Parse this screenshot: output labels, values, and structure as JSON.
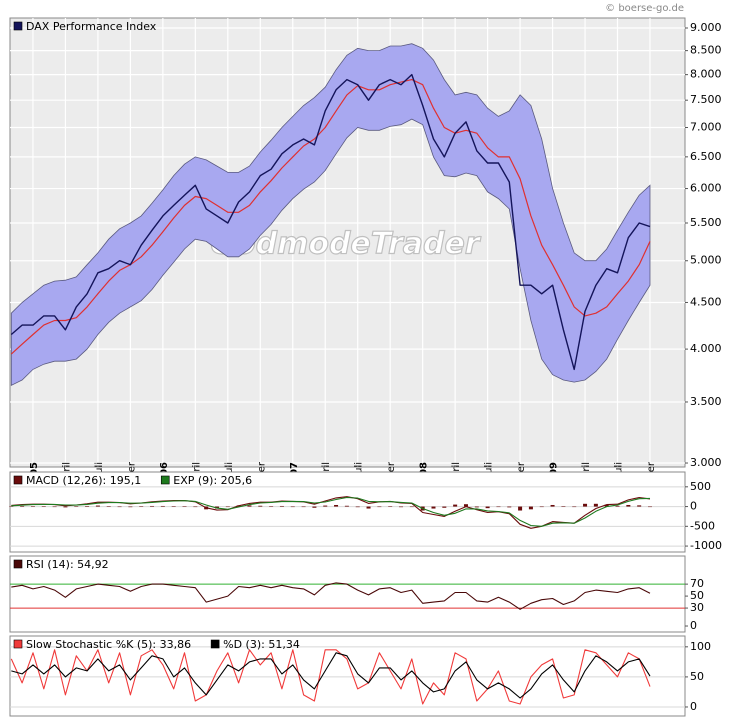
{
  "chart_data": [
    {
      "type": "line",
      "source": "© boerse-go.de",
      "watermark": "GodmodeTrader",
      "log_scale": true,
      "grid": true,
      "categories": [
        null,
        null,
        "Januar 05",
        null,
        null,
        "April",
        null,
        null,
        "Juli",
        null,
        null,
        "Oktober",
        null,
        null,
        "Januar 06",
        null,
        null,
        "April",
        null,
        null,
        "Juli",
        null,
        null,
        "Oktober",
        null,
        null,
        "Januar 07",
        null,
        null,
        "April",
        null,
        null,
        "Juli",
        null,
        null,
        "Oktober",
        null,
        null,
        "Januar 08",
        null,
        null,
        "April",
        null,
        null,
        "Juli",
        null,
        null,
        "Oktober",
        null,
        null,
        "Januar 09",
        null,
        null,
        "April",
        null,
        null,
        "Juli",
        null,
        null,
        "Oktober"
      ],
      "series": [
        {
          "name": "DAX Performance Index",
          "color": "#14145a",
          "values": [
            4150,
            4250,
            4250,
            4350,
            4350,
            4200,
            4450,
            4600,
            4850,
            4900,
            5000,
            4950,
            5200,
            5400,
            5600,
            5750,
            5900,
            6050,
            5700,
            5600,
            5500,
            5800,
            5950,
            6200,
            6300,
            6550,
            6700,
            6800,
            6700,
            7300,
            7700,
            7900,
            7800,
            7500,
            7800,
            7900,
            7800,
            8000,
            7400,
            6800,
            6500,
            6900,
            7100,
            6600,
            6400,
            6400,
            6100,
            4700,
            4700,
            4600,
            4700,
            4200,
            3800,
            4400,
            4700,
            4900,
            4850,
            5300,
            5500,
            5450
          ]
        }
      ],
      "moving_average": {
        "color": "#e03030",
        "values": [
          3950,
          4050,
          4150,
          4250,
          4300,
          4300,
          4330,
          4450,
          4600,
          4750,
          4880,
          4950,
          5050,
          5200,
          5380,
          5570,
          5750,
          5880,
          5850,
          5750,
          5650,
          5650,
          5750,
          5950,
          6120,
          6320,
          6500,
          6680,
          6800,
          7000,
          7300,
          7600,
          7780,
          7700,
          7700,
          7800,
          7850,
          7900,
          7800,
          7350,
          7000,
          6900,
          6950,
          6900,
          6650,
          6500,
          6500,
          6150,
          5600,
          5200,
          4950,
          4700,
          4450,
          4350,
          4380,
          4450,
          4600,
          4750,
          4950,
          5250
        ]
      },
      "band": {
        "color": "#a8a8f0",
        "edge_color": "#5a5a80",
        "upper": [
          4380,
          4500,
          4600,
          4700,
          4750,
          4760,
          4800,
          4950,
          5100,
          5280,
          5420,
          5500,
          5600,
          5780,
          5980,
          6200,
          6380,
          6500,
          6450,
          6350,
          6250,
          6250,
          6350,
          6580,
          6780,
          7000,
          7200,
          7400,
          7550,
          7750,
          8100,
          8400,
          8550,
          8500,
          8500,
          8600,
          8600,
          8650,
          8550,
          8300,
          7900,
          7600,
          7650,
          7600,
          7350,
          7200,
          7300,
          7600,
          7400,
          6800,
          6000,
          5500,
          5100,
          5000,
          5000,
          5150,
          5400,
          5650,
          5900,
          6050
        ],
        "lower": [
          3650,
          3700,
          3800,
          3850,
          3880,
          3880,
          3900,
          4000,
          4150,
          4280,
          4380,
          4450,
          4520,
          4650,
          4820,
          4980,
          5150,
          5280,
          5250,
          5150,
          5050,
          5050,
          5150,
          5330,
          5480,
          5680,
          5850,
          5990,
          6100,
          6280,
          6550,
          6820,
          7000,
          6950,
          6950,
          7020,
          7050,
          7150,
          7050,
          6500,
          6200,
          6180,
          6240,
          6200,
          5950,
          5850,
          5700,
          4900,
          4300,
          3900,
          3750,
          3700,
          3680,
          3700,
          3780,
          3900,
          4100,
          4300,
          4500,
          4700
        ]
      },
      "ylim": [
        2970,
        9230
      ],
      "yticks": [
        {
          "value": 3000,
          "label": "3.000"
        },
        {
          "value": 3500,
          "label": "3.500"
        },
        {
          "value": 4000,
          "label": "4.000"
        },
        {
          "value": 4500,
          "label": "4.500"
        },
        {
          "value": 5000,
          "label": "5.000"
        },
        {
          "value": 5500,
          "label": "5.500"
        },
        {
          "value": 6000,
          "label": "6.000"
        },
        {
          "value": 6500,
          "label": "6.500"
        },
        {
          "value": 7000,
          "label": "7.000"
        },
        {
          "value": 7500,
          "label": "7.500"
        },
        {
          "value": 8000,
          "label": "8.000"
        },
        {
          "value": 8500,
          "label": "8.500"
        },
        {
          "value": 9000,
          "label": "9.000"
        }
      ]
    },
    {
      "type": "line",
      "grid": true,
      "series": [
        {
          "name": "MACD (12,26): 195,1",
          "color": "#6a0c0c",
          "values": [
            30,
            50,
            60,
            60,
            50,
            20,
            40,
            70,
            110,
            110,
            100,
            70,
            90,
            120,
            140,
            150,
            150,
            120,
            -30,
            -90,
            -80,
            20,
            80,
            110,
            110,
            140,
            130,
            120,
            60,
            140,
            220,
            250,
            200,
            80,
            120,
            130,
            90,
            80,
            -150,
            -200,
            -250,
            -120,
            0,
            -80,
            -150,
            -130,
            -180,
            -450,
            -550,
            -500,
            -380,
            -400,
            -420,
            -220,
            -50,
            50,
            60,
            170,
            230,
            195.1
          ]
        },
        {
          "name": "EXP (9): 205,6",
          "color": "#1e7a1e",
          "values": [
            20,
            35,
            50,
            55,
            55,
            40,
            38,
            55,
            85,
            100,
            100,
            85,
            88,
            105,
            125,
            140,
            148,
            130,
            40,
            -40,
            -70,
            -10,
            50,
            90,
            105,
            125,
            130,
            125,
            90,
            115,
            180,
            230,
            215,
            130,
            120,
            125,
            105,
            90,
            -50,
            -150,
            -220,
            -170,
            -60,
            -60,
            -110,
            -125,
            -160,
            -350,
            -480,
            -500,
            -420,
            -410,
            -420,
            -290,
            -120,
            0,
            40,
            130,
            200,
            205.6
          ]
        }
      ],
      "histogram": {
        "color": "#6a0c0c",
        "values": [
          10,
          15,
          10,
          5,
          -5,
          -20,
          2,
          15,
          25,
          10,
          0,
          -15,
          2,
          15,
          15,
          10,
          2,
          -10,
          -70,
          -50,
          -10,
          30,
          30,
          20,
          5,
          15,
          0,
          -5,
          -30,
          25,
          40,
          20,
          -15,
          -50,
          0,
          5,
          -15,
          -10,
          -100,
          -50,
          -30,
          50,
          60,
          -20,
          -40,
          -5,
          -20,
          -100,
          -70,
          0,
          40,
          10,
          0,
          70,
          70,
          50,
          20,
          40,
          30,
          -10.5
        ]
      },
      "ylim": [
        -1150,
        875
      ],
      "yticks": [
        -1000,
        -500,
        0,
        500
      ]
    },
    {
      "type": "line",
      "grid": false,
      "series": [
        {
          "name": "RSI (14): 54,92",
          "color": "#4a0808",
          "values": [
            65,
            68,
            62,
            66,
            60,
            48,
            62,
            66,
            70,
            68,
            66,
            58,
            66,
            70,
            70,
            68,
            66,
            64,
            40,
            45,
            50,
            66,
            64,
            68,
            64,
            68,
            64,
            62,
            52,
            68,
            72,
            70,
            60,
            52,
            62,
            64,
            56,
            60,
            38,
            40,
            42,
            56,
            56,
            42,
            40,
            48,
            40,
            28,
            38,
            44,
            46,
            36,
            42,
            56,
            60,
            58,
            56,
            62,
            64,
            54.92
          ]
        }
      ],
      "ylim": [
        -10,
        117
      ],
      "yticks": [
        0,
        30,
        50,
        70
      ],
      "tick_colors": [
        null,
        "#e03030",
        null,
        "#30b030"
      ]
    },
    {
      "type": "line",
      "grid": true,
      "series": [
        {
          "name": "Slow Stochastic %K (5): 33,86",
          "color": "#f03a3a",
          "values": [
            80,
            40,
            90,
            30,
            95,
            20,
            85,
            60,
            95,
            40,
            90,
            20,
            85,
            95,
            70,
            30,
            90,
            10,
            20,
            60,
            90,
            40,
            95,
            70,
            90,
            30,
            95,
            20,
            10,
            95,
            95,
            80,
            30,
            40,
            90,
            60,
            30,
            80,
            5,
            40,
            20,
            90,
            80,
            10,
            30,
            60,
            10,
            5,
            50,
            70,
            80,
            15,
            20,
            95,
            90,
            70,
            50,
            90,
            80,
            33.86
          ]
        },
        {
          "name": "%D (3): 51,34",
          "color": "#000000",
          "values": [
            60,
            55,
            70,
            55,
            70,
            50,
            65,
            60,
            80,
            60,
            70,
            45,
            65,
            85,
            80,
            50,
            65,
            40,
            20,
            45,
            70,
            60,
            75,
            80,
            80,
            55,
            70,
            45,
            30,
            60,
            90,
            85,
            55,
            40,
            65,
            65,
            45,
            60,
            40,
            25,
            30,
            60,
            75,
            45,
            30,
            40,
            30,
            15,
            30,
            55,
            70,
            45,
            25,
            60,
            85,
            75,
            60,
            75,
            80,
            51.34
          ]
        }
      ],
      "ylim": [
        -15,
        118
      ],
      "yticks": [
        0,
        50,
        100
      ]
    }
  ]
}
